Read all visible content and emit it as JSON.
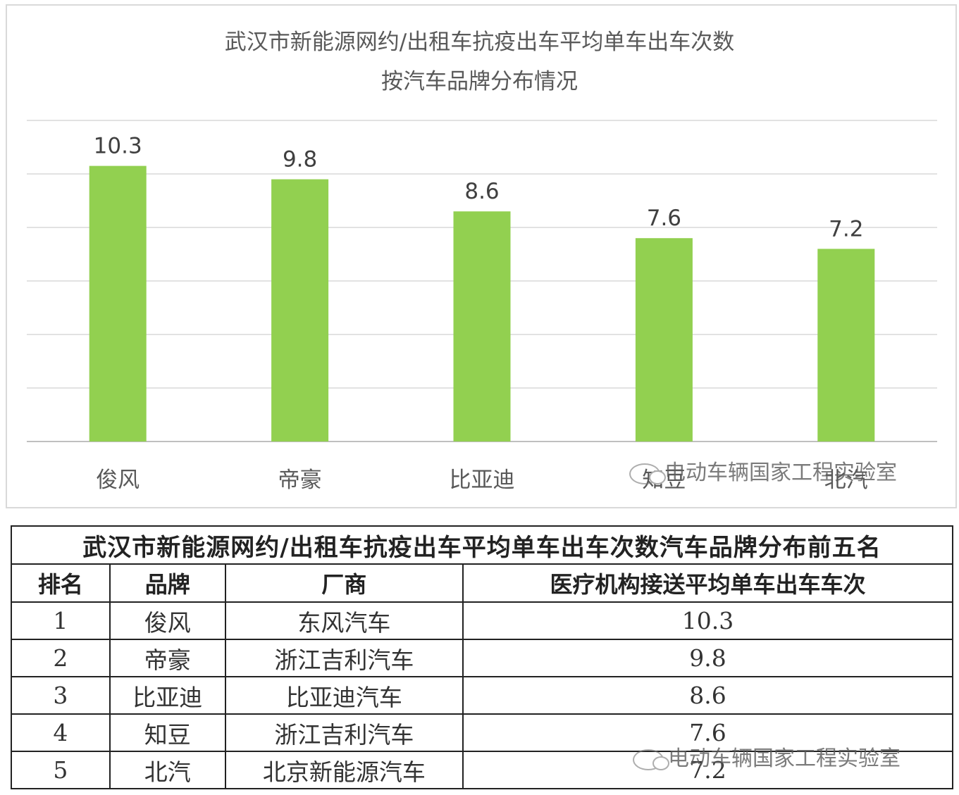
{
  "chart_data": {
    "type": "bar",
    "title": "武汉市新能源网约/出租车抗疫出车平均单车出车次数",
    "subtitle": "按汽车品牌分布情况",
    "categories": [
      "俊风",
      "帝豪",
      "比亚迪",
      "知豆",
      "北汽"
    ],
    "values": [
      10.3,
      9.8,
      8.6,
      7.6,
      7.2
    ],
    "value_labels": [
      "10.3",
      "9.8",
      "8.6",
      "7.6",
      "7.2"
    ],
    "ylim": [
      0,
      12
    ],
    "grid": true,
    "bar_color": "#92d050",
    "legend": "none"
  },
  "watermark": "电动车辆国家工程实验室",
  "table": {
    "title": "武汉市新能源网约/出租车抗疫出车平均单车出车次数汽车品牌分布前五名",
    "headers": [
      "排名",
      "品牌",
      "厂商",
      "医疗机构接送平均单车出车车次"
    ],
    "rows": [
      [
        "1",
        "俊风",
        "东风汽车",
        "10.3"
      ],
      [
        "2",
        "帝豪",
        "浙江吉利汽车",
        "9.8"
      ],
      [
        "3",
        "比亚迪",
        "比亚迪汽车",
        "8.6"
      ],
      [
        "4",
        "知豆",
        "浙江吉利汽车",
        "7.6"
      ],
      [
        "5",
        "北汽",
        "北京新能源汽车",
        "7.2"
      ]
    ]
  }
}
